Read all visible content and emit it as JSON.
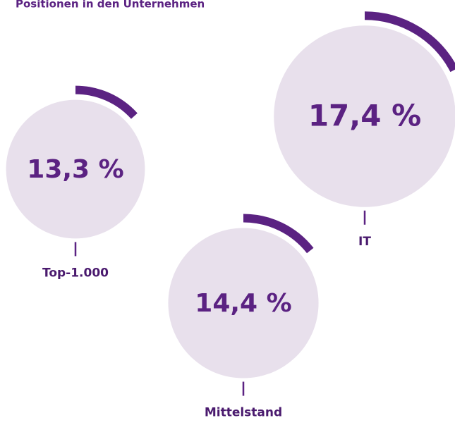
{
  "chart_data": {
    "type": "progress-circle",
    "title": "Positionen in den Unternehmen",
    "categories": [
      "Top-1.000",
      "IT",
      "Mittelstand"
    ],
    "values": [
      13.3,
      17.4,
      14.4
    ],
    "value_labels": [
      "13,3 %",
      "17,4 %",
      "14,4 %"
    ],
    "color": "#5b2282",
    "track_color": "#e8e0ec"
  }
}
